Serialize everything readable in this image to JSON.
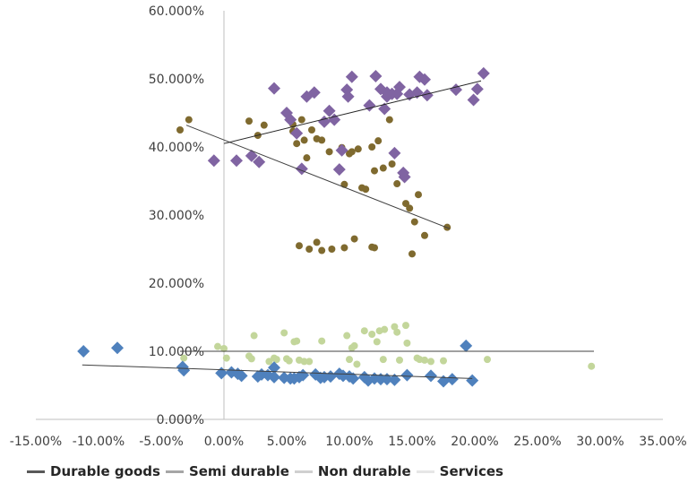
{
  "chart_data": {
    "type": "scatter",
    "title": "",
    "xlabel": "",
    "ylabel": "",
    "xlim": [
      -0.15,
      0.35
    ],
    "ylim": [
      0,
      0.6
    ],
    "x_ticks": [
      "-15.00%",
      "-10.00%",
      "-5.00%",
      "0.00%",
      "5.00%",
      "10.00%",
      "15.00%",
      "20.00%",
      "25.00%",
      "30.00%",
      "35.00%"
    ],
    "y_ticks": [
      "0.000%",
      "10.000%",
      "20.000%",
      "30.000%",
      "40.000%",
      "50.000%",
      "60.000%"
    ],
    "grid": false,
    "legend_position": "bottom",
    "series": [
      {
        "name": "Durable goods",
        "color": "#4f81bd",
        "marker": "diamond",
        "trendline": {
          "x": [
            -0.113,
            0.198
          ],
          "y": [
            0.08,
            0.06
          ]
        },
        "points": [
          [
            -0.112,
            0.1
          ],
          [
            -0.085,
            0.105
          ],
          [
            -0.033,
            0.077
          ],
          [
            -0.032,
            0.072
          ],
          [
            -0.002,
            0.068
          ],
          [
            0.006,
            0.069
          ],
          [
            0.011,
            0.067
          ],
          [
            0.014,
            0.064
          ],
          [
            0.027,
            0.063
          ],
          [
            0.03,
            0.066
          ],
          [
            0.035,
            0.065
          ],
          [
            0.04,
            0.076
          ],
          [
            0.04,
            0.062
          ],
          [
            0.048,
            0.061
          ],
          [
            0.053,
            0.06
          ],
          [
            0.056,
            0.06
          ],
          [
            0.06,
            0.062
          ],
          [
            0.063,
            0.065
          ],
          [
            0.073,
            0.066
          ],
          [
            0.077,
            0.061
          ],
          [
            0.08,
            0.062
          ],
          [
            0.085,
            0.063
          ],
          [
            0.092,
            0.067
          ],
          [
            0.095,
            0.064
          ],
          [
            0.1,
            0.063
          ],
          [
            0.103,
            0.06
          ],
          [
            0.112,
            0.062
          ],
          [
            0.115,
            0.057
          ],
          [
            0.12,
            0.06
          ],
          [
            0.125,
            0.059
          ],
          [
            0.13,
            0.059
          ],
          [
            0.136,
            0.058
          ],
          [
            0.146,
            0.065
          ],
          [
            0.165,
            0.064
          ],
          [
            0.175,
            0.056
          ],
          [
            0.182,
            0.059
          ],
          [
            0.193,
            0.108
          ],
          [
            0.198,
            0.057
          ]
        ]
      },
      {
        "name": "Semi durable",
        "color": "#7f6a2f",
        "marker": "circle",
        "trendline": {
          "x": [
            -0.03,
            0.18
          ],
          "y": [
            0.432,
            0.28
          ]
        },
        "points": [
          [
            -0.035,
            0.425
          ],
          [
            -0.028,
            0.44
          ],
          [
            0.02,
            0.438
          ],
          [
            0.027,
            0.417
          ],
          [
            0.032,
            0.432
          ],
          [
            0.055,
            0.433
          ],
          [
            0.055,
            0.423
          ],
          [
            0.058,
            0.405
          ],
          [
            0.062,
            0.44
          ],
          [
            0.064,
            0.41
          ],
          [
            0.066,
            0.384
          ],
          [
            0.07,
            0.425
          ],
          [
            0.074,
            0.412
          ],
          [
            0.078,
            0.41
          ],
          [
            0.084,
            0.393
          ],
          [
            0.094,
            0.399
          ],
          [
            0.1,
            0.39
          ],
          [
            0.102,
            0.393
          ],
          [
            0.107,
            0.397
          ],
          [
            0.11,
            0.34
          ],
          [
            0.113,
            0.338
          ],
          [
            0.118,
            0.4
          ],
          [
            0.12,
            0.365
          ],
          [
            0.123,
            0.409
          ],
          [
            0.127,
            0.369
          ],
          [
            0.132,
            0.44
          ],
          [
            0.134,
            0.375
          ],
          [
            0.138,
            0.346
          ],
          [
            0.145,
            0.317
          ],
          [
            0.148,
            0.31
          ],
          [
            0.152,
            0.29
          ],
          [
            0.155,
            0.33
          ],
          [
            0.16,
            0.27
          ],
          [
            0.178,
            0.282
          ],
          [
            0.096,
            0.345
          ],
          [
            0.06,
            0.255
          ],
          [
            0.068,
            0.25
          ],
          [
            0.074,
            0.26
          ],
          [
            0.078,
            0.248
          ],
          [
            0.086,
            0.25
          ],
          [
            0.096,
            0.252
          ],
          [
            0.104,
            0.265
          ],
          [
            0.118,
            0.253
          ],
          [
            0.12,
            0.252
          ],
          [
            0.15,
            0.243
          ]
        ]
      },
      {
        "name": "Non durable",
        "color": "#8064a2",
        "marker": "diamond",
        "trendline": {
          "x": [
            0.0,
            0.205
          ],
          "y": [
            0.405,
            0.497
          ]
        },
        "points": [
          [
            -0.008,
            0.38
          ],
          [
            0.01,
            0.38
          ],
          [
            0.022,
            0.387
          ],
          [
            0.028,
            0.378
          ],
          [
            0.04,
            0.486
          ],
          [
            0.05,
            0.45
          ],
          [
            0.053,
            0.44
          ],
          [
            0.058,
            0.42
          ],
          [
            0.062,
            0.368
          ],
          [
            0.066,
            0.474
          ],
          [
            0.072,
            0.48
          ],
          [
            0.08,
            0.437
          ],
          [
            0.084,
            0.453
          ],
          [
            0.088,
            0.44
          ],
          [
            0.092,
            0.367
          ],
          [
            0.094,
            0.395
          ],
          [
            0.098,
            0.484
          ],
          [
            0.099,
            0.474
          ],
          [
            0.102,
            0.503
          ],
          [
            0.116,
            0.461
          ],
          [
            0.121,
            0.504
          ],
          [
            0.125,
            0.485
          ],
          [
            0.128,
            0.456
          ],
          [
            0.13,
            0.474
          ],
          [
            0.13,
            0.48
          ],
          [
            0.134,
            0.478
          ],
          [
            0.136,
            0.391
          ],
          [
            0.138,
            0.478
          ],
          [
            0.14,
            0.488
          ],
          [
            0.143,
            0.362
          ],
          [
            0.144,
            0.356
          ],
          [
            0.148,
            0.477
          ],
          [
            0.154,
            0.48
          ],
          [
            0.156,
            0.503
          ],
          [
            0.16,
            0.499
          ],
          [
            0.162,
            0.476
          ],
          [
            0.185,
            0.484
          ],
          [
            0.199,
            0.469
          ],
          [
            0.202,
            0.485
          ],
          [
            0.207,
            0.508
          ]
        ]
      },
      {
        "name": "Services",
        "color": "#c3d69b",
        "marker": "circle",
        "trendline": {
          "x": [
            -0.035,
            0.295
          ],
          "y": [
            0.1,
            0.1
          ]
        },
        "points": [
          [
            -0.032,
            0.09
          ],
          [
            -0.005,
            0.107
          ],
          [
            0.0,
            0.104
          ],
          [
            0.002,
            0.09
          ],
          [
            0.02,
            0.093
          ],
          [
            0.022,
            0.089
          ],
          [
            0.024,
            0.123
          ],
          [
            0.036,
            0.085
          ],
          [
            0.04,
            0.09
          ],
          [
            0.042,
            0.088
          ],
          [
            0.048,
            0.127
          ],
          [
            0.05,
            0.089
          ],
          [
            0.052,
            0.086
          ],
          [
            0.056,
            0.114
          ],
          [
            0.058,
            0.115
          ],
          [
            0.06,
            0.087
          ],
          [
            0.064,
            0.085
          ],
          [
            0.068,
            0.085
          ],
          [
            0.078,
            0.115
          ],
          [
            0.098,
            0.123
          ],
          [
            0.1,
            0.088
          ],
          [
            0.102,
            0.105
          ],
          [
            0.104,
            0.108
          ],
          [
            0.106,
            0.081
          ],
          [
            0.112,
            0.13
          ],
          [
            0.118,
            0.125
          ],
          [
            0.122,
            0.114
          ],
          [
            0.124,
            0.13
          ],
          [
            0.127,
            0.088
          ],
          [
            0.128,
            0.132
          ],
          [
            0.136,
            0.136
          ],
          [
            0.138,
            0.128
          ],
          [
            0.14,
            0.087
          ],
          [
            0.145,
            0.138
          ],
          [
            0.146,
            0.112
          ],
          [
            0.154,
            0.09
          ],
          [
            0.156,
            0.088
          ],
          [
            0.16,
            0.087
          ],
          [
            0.165,
            0.085
          ],
          [
            0.175,
            0.086
          ],
          [
            0.21,
            0.088
          ],
          [
            0.293,
            0.078
          ]
        ]
      }
    ]
  }
}
